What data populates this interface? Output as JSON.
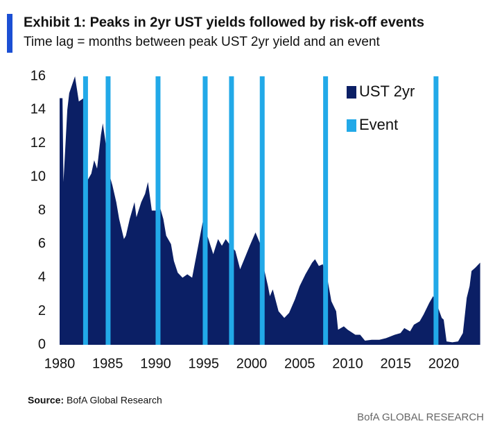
{
  "chart_data": {
    "type": "area",
    "title": "Exhibit 1: Peaks in 2yr UST yields followed by risk-off events",
    "subtitle": "Time lag = months between peak UST 2yr yield and an event",
    "xlim": [
      1980,
      2023.9
    ],
    "xticks": [
      1980,
      1985,
      1990,
      1995,
      2000,
      2005,
      2010,
      2015,
      2020
    ],
    "ylim": [
      0,
      16
    ],
    "yticks": [
      0,
      2,
      4,
      6,
      8,
      10,
      12,
      14,
      16
    ],
    "legend": "top-right",
    "series": [
      {
        "name": "UST 2yr",
        "color": "#0b1f65",
        "x": [
          1980.0,
          1980.3,
          1980.4,
          1980.8,
          1981.0,
          1981.6,
          1982.0,
          1982.5,
          1982.9,
          1983.3,
          1983.6,
          1983.9,
          1984.3,
          1984.5,
          1984.8,
          1985.0,
          1985.5,
          1985.9,
          1986.2,
          1986.7,
          1986.9,
          1987.3,
          1987.8,
          1988.0,
          1988.5,
          1988.9,
          1989.2,
          1989.6,
          1990.0,
          1990.3,
          1990.8,
          1991.1,
          1991.6,
          1991.9,
          1992.3,
          1992.8,
          1993.3,
          1993.8,
          1994.3,
          1994.9,
          1995.5,
          1996.0,
          1996.5,
          1996.9,
          1997.3,
          1997.8,
          1998.3,
          1998.8,
          1999.3,
          1999.8,
          2000.4,
          2000.9,
          2001.3,
          2001.7,
          2001.9,
          2002.2,
          2002.8,
          2003.4,
          2003.9,
          2004.5,
          2005.0,
          2005.6,
          2006.3,
          2006.6,
          2007.0,
          2007.4,
          2007.9,
          2008.3,
          2008.8,
          2009.0,
          2009.6,
          2010.0,
          2010.8,
          2011.3,
          2011.8,
          2012.5,
          2013.3,
          2014.0,
          2014.9,
          2015.5,
          2015.9,
          2016.5,
          2016.9,
          2017.5,
          2017.9,
          2018.5,
          2018.9,
          2019.3,
          2019.8,
          2020.0,
          2020.3,
          2020.9,
          2021.5,
          2022.0,
          2022.4,
          2022.7,
          2022.9,
          2023.3,
          2023.8
        ],
        "values": [
          14.7,
          14.7,
          9.7,
          14,
          15,
          16,
          14.5,
          14.7,
          9.8,
          10.2,
          11,
          10.5,
          12.5,
          13.2,
          12,
          10.5,
          9.5,
          8.5,
          7.5,
          6.3,
          6.5,
          7.5,
          8.5,
          7.6,
          8.5,
          9,
          9.7,
          8,
          8,
          8.5,
          7.5,
          6.5,
          6,
          5,
          4.3,
          4,
          4.2,
          4,
          5.5,
          7.3,
          6.3,
          5.4,
          6.3,
          5.9,
          6.3,
          5.9,
          5.6,
          4.5,
          5.2,
          5.9,
          6.7,
          6,
          4.5,
          3.5,
          2.9,
          3.3,
          2,
          1.6,
          1.9,
          2.7,
          3.5,
          4.2,
          4.9,
          5.1,
          4.7,
          4.8,
          3.9,
          2.6,
          2,
          0.9,
          1.1,
          0.9,
          0.6,
          0.6,
          0.25,
          0.3,
          0.3,
          0.4,
          0.6,
          0.7,
          1,
          0.8,
          1.2,
          1.4,
          1.8,
          2.5,
          2.9,
          2.4,
          1.6,
          1.5,
          0.2,
          0.15,
          0.2,
          0.7,
          2.8,
          3.5,
          4.4,
          4.6,
          4.9
        ]
      },
      {
        "name": "Event",
        "color": "#22a9e8",
        "x": [
          1982.7,
          1985.05,
          1990.25,
          1995.16,
          1997.9,
          2001.1,
          2007.7,
          2019.2
        ]
      }
    ],
    "source_label": "Source:",
    "source": "BofA Global Research",
    "footer": "BofA GLOBAL RESEARCH"
  }
}
